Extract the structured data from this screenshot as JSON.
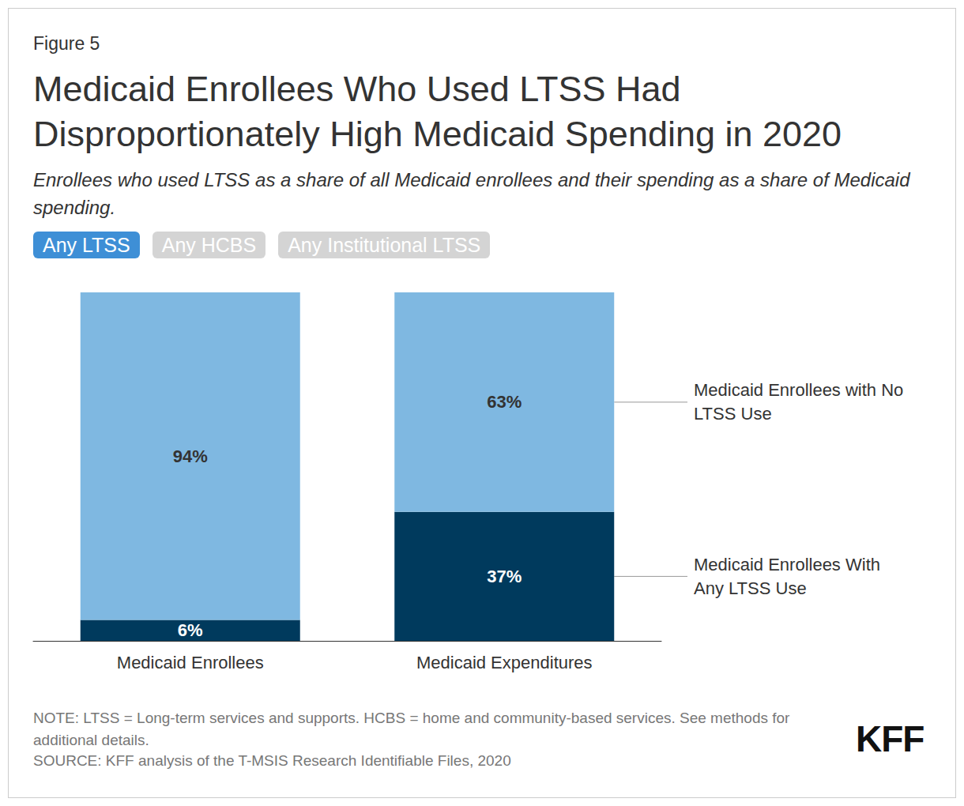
{
  "figure_label": "Figure 5",
  "tabs": [
    "Any LTSS",
    "Any HCBS",
    "Any Institutional LTSS"
  ],
  "note": "NOTE: LTSS = Long-term services and supports. HCBS = home and community-based services. See methods for additional details.",
  "source": "SOURCE: KFF analysis of the T-MSIS Research Identifiable Files, 2020",
  "logo": "KFF",
  "chart_data": {
    "type": "bar",
    "title": "Medicaid Enrollees Who Used LTSS Had Disproportionately High Medicaid Spending in 2020",
    "subtitle": "Enrollees who used LTSS as a share of all Medicaid enrollees and their spending as a share of Medicaid spending.",
    "categories": [
      "Medicaid Enrollees",
      "Medicaid Expenditures"
    ],
    "series": [
      {
        "name": "Medicaid Enrollees With Any LTSS Use",
        "color": "#003a5d",
        "values": [
          6,
          37
        ],
        "value_labels": [
          "6%",
          "37%"
        ]
      },
      {
        "name": "Medicaid Enrollees with No LTSS Use",
        "color": "#7fb8e1",
        "values": [
          94,
          63
        ],
        "value_labels": [
          "94%",
          "63%"
        ]
      }
    ],
    "stacked": true,
    "data_labels": true,
    "tick_labels": "x",
    "ylim": [
      0,
      100
    ],
    "legend": "right"
  }
}
